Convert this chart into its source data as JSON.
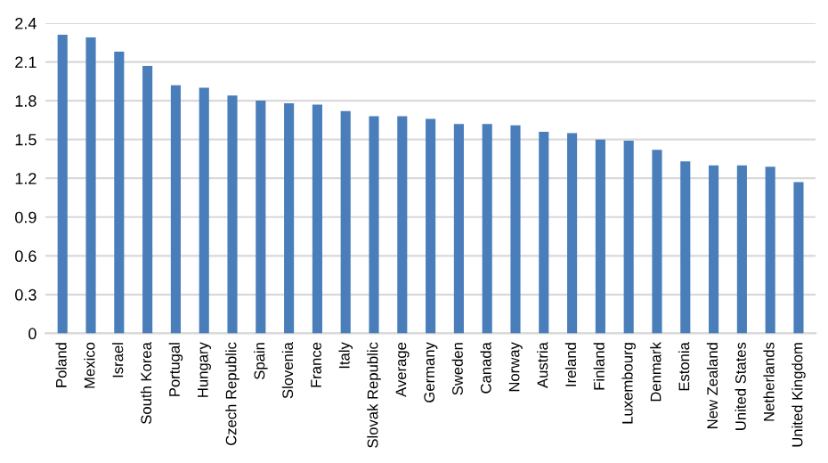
{
  "chart_data": {
    "type": "bar",
    "categories": [
      "Poland",
      "Mexico",
      "Israel",
      "South Korea",
      "Portugal",
      "Hungary",
      "Czech Republic",
      "Spain",
      "Slovenia",
      "France",
      "Italy",
      "Slovak Republic",
      "Average",
      "Germany",
      "Sweden",
      "Canada",
      "Norway",
      "Austria",
      "Ireland",
      "Finland",
      "Luxembourg",
      "Denmark",
      "Estonia",
      "New Zealand",
      "United States",
      "Netherlands",
      "United Kingdom"
    ],
    "values": [
      2.31,
      2.29,
      2.18,
      2.07,
      1.92,
      1.9,
      1.84,
      1.8,
      1.78,
      1.77,
      1.72,
      1.68,
      1.68,
      1.66,
      1.62,
      1.62,
      1.61,
      1.56,
      1.55,
      1.5,
      1.49,
      1.42,
      1.33,
      1.3,
      1.3,
      1.29,
      1.17
    ],
    "color": "#4a7ebb",
    "ylim": [
      0,
      2.4
    ],
    "yticks": [
      0,
      {
        "value": 0.3,
        "label": "0.3"
      },
      {
        "value": 0.6,
        "label": "0.6"
      },
      {
        "value": 0.9,
        "label": "0.9"
      },
      {
        "value": 1.2,
        "label": "1.2"
      },
      {
        "value": 1.5,
        "label": "1.5"
      },
      {
        "value": 1.8,
        "label": "1.8"
      },
      {
        "value": 2.1,
        "label": "2.1"
      },
      {
        "value": 2.4,
        "label": "2.4"
      }
    ],
    "grid": "y"
  }
}
